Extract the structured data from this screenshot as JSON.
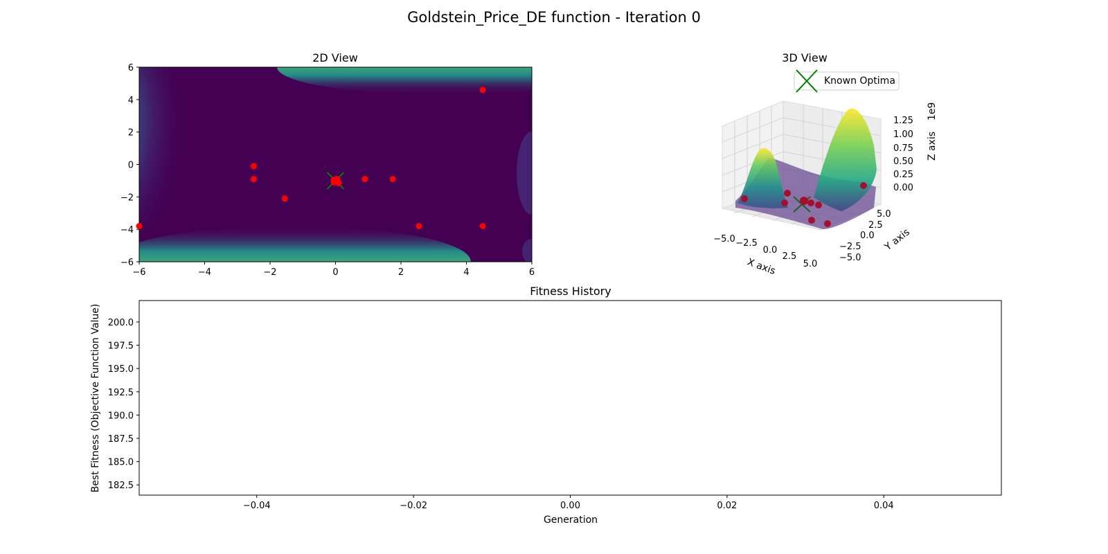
{
  "figure_title": "Goldstein_Price_DE function - Iteration 0",
  "colors": {
    "background": "#ffffff",
    "contour_low": "#440154",
    "contour_mid": "#21918c",
    "contour_high": "#fde725",
    "population_marker": "#ff0000",
    "population_marker_3d": "#a50f2e",
    "optimum_marker": "#008000",
    "axis": "#000000",
    "grid_3d": "#d0d0d0"
  },
  "chart_data": [
    {
      "type": "scatter",
      "panel": "2d",
      "title": "2D View",
      "xlabel": "",
      "ylabel": "",
      "xlim": [
        -6,
        6
      ],
      "ylim": [
        -6,
        6
      ],
      "xticks": [
        -6,
        -4,
        -2,
        0,
        2,
        4,
        6
      ],
      "yticks": [
        -6,
        -4,
        -2,
        0,
        2,
        4,
        6
      ],
      "background": "filled contour of the Goldstein-Price function (viridis colormap)",
      "population": [
        {
          "x": 4.5,
          "y": 4.6
        },
        {
          "x": -2.5,
          "y": -0.1
        },
        {
          "x": -2.5,
          "y": -0.9
        },
        {
          "x": 0.9,
          "y": -0.9
        },
        {
          "x": 1.75,
          "y": -0.9
        },
        {
          "x": -1.55,
          "y": -2.1
        },
        {
          "x": -6.0,
          "y": -3.8
        },
        {
          "x": 2.55,
          "y": -3.8
        },
        {
          "x": 4.5,
          "y": -3.8
        },
        {
          "x": -0.05,
          "y": -0.95
        },
        {
          "x": 0.05,
          "y": -0.9
        },
        {
          "x": 0.1,
          "y": -1.15
        },
        {
          "x": -0.05,
          "y": -1.1
        }
      ],
      "known_optima": [
        {
          "x": 0,
          "y": -1
        }
      ]
    },
    {
      "type": "surface",
      "panel": "3d",
      "title": "3D View",
      "xlabel": "X axis",
      "ylabel": "Y axis",
      "zlabel": "Z axis",
      "z_offset_label": "1e9",
      "xticks": [
        "−5.0",
        "−2.5",
        "0.0",
        "2.5",
        "5.0"
      ],
      "yticks": [
        "−5.0",
        "−2.5",
        "0.0",
        "2.5",
        "5.0"
      ],
      "zticks": [
        "0.00",
        "0.25",
        "0.50",
        "0.75",
        "1.00",
        "1.25"
      ],
      "zlim": [
        0,
        1.3
      ],
      "legend": {
        "label": "Known Optima",
        "placement": "top"
      },
      "colormap": "viridis"
    },
    {
      "type": "line",
      "panel": "history",
      "title": "Fitness History",
      "xlabel": "Generation",
      "ylabel": "Best Fitness (Objective Function Value)",
      "xlim": [
        -0.055,
        0.055
      ],
      "ylim": [
        181.4,
        202.3
      ],
      "xticks": [
        "−0.04",
        "−0.02",
        "0.00",
        "0.02",
        "0.04"
      ],
      "yticks": [
        "182.5",
        "185.0",
        "187.5",
        "190.0",
        "192.5",
        "195.0",
        "197.5",
        "200.0"
      ],
      "series": []
    }
  ]
}
